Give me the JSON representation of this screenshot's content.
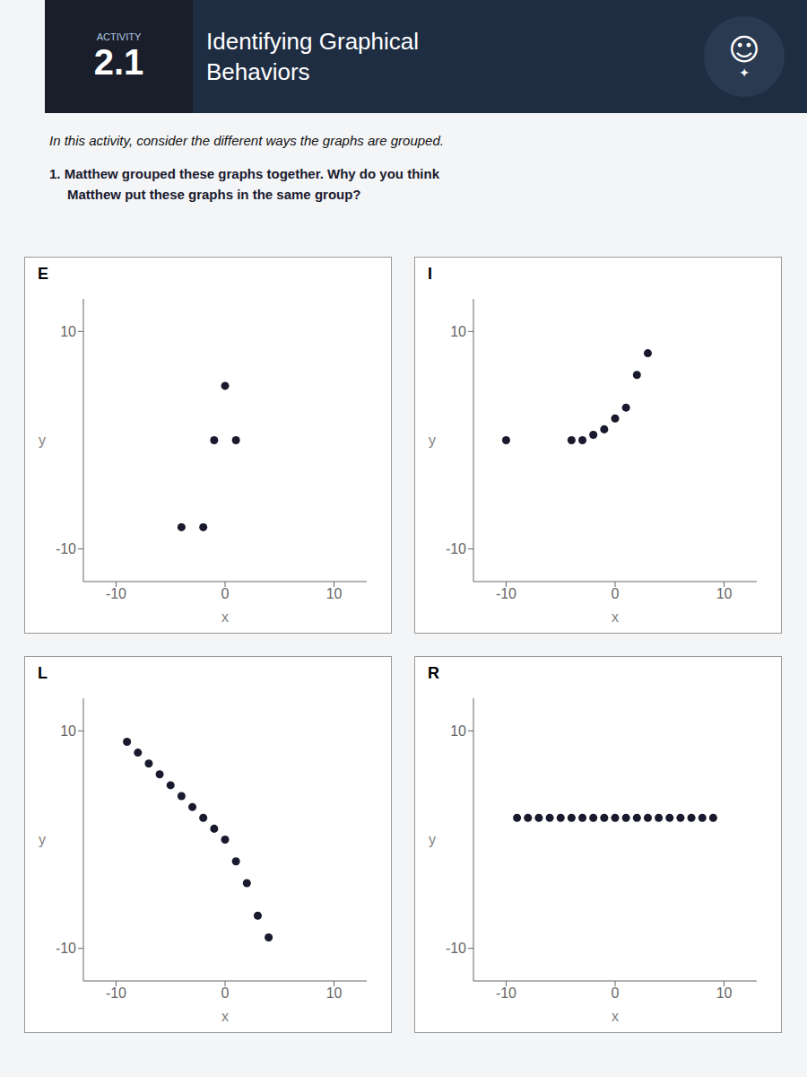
{
  "annotations": [
    "ACTIVITY",
    "2.1",
    "Identifying Graphical",
    "Behaviors",
    "☺",
    "✦",
    "In this activity, consider the different ways the graphs are grouped.",
    "1.  Matthew grouped these graphs together. Why do you think",
    "Matthew put these graphs in the same group?"
  ],
  "chart_data": [
    {
      "type": "scatter",
      "title": "E",
      "x_label": "x",
      "y_label": "y",
      "x": [
        0,
        -1,
        1,
        -4,
        -2
      ],
      "values": [
        5,
        0,
        0,
        -8,
        -8
      ],
      "color": "#1a1a2e",
      "xlim": [
        -13,
        13
      ],
      "ylim": [
        -13,
        13
      ],
      "xticks": [
        -10,
        0,
        10
      ],
      "yticks": [
        -10,
        10
      ],
      "grid": false
    },
    {
      "type": "scatter",
      "title": "I",
      "x_label": "x",
      "y_label": "y",
      "x": [
        -10,
        -4,
        -3,
        -2,
        -1,
        0,
        1,
        2,
        3
      ],
      "values": [
        0,
        0,
        0,
        0.5,
        1,
        2,
        3,
        6,
        8
      ],
      "color": "#1a1a2e",
      "xlim": [
        -13,
        13
      ],
      "ylim": [
        -13,
        13
      ],
      "xticks": [
        -10,
        0,
        10
      ],
      "yticks": [
        -10,
        10
      ],
      "grid": false
    },
    {
      "type": "scatter",
      "title": "L",
      "x_label": "x",
      "y_label": "y",
      "x": [
        -9,
        -8,
        -7,
        -6,
        -5,
        -4,
        -3,
        -2,
        -1,
        0,
        1,
        2,
        3,
        4
      ],
      "values": [
        9,
        8,
        7,
        6,
        5,
        4,
        3,
        2,
        1,
        0,
        -2,
        -4,
        -7,
        -9
      ],
      "color": "#1a1a2e",
      "xlim": [
        -13,
        13
      ],
      "ylim": [
        -13,
        13
      ],
      "xticks": [
        -10,
        0,
        10
      ],
      "yticks": [
        -10,
        10
      ],
      "grid": false
    },
    {
      "type": "scatter",
      "title": "R",
      "x_label": "x",
      "y_label": "y",
      "x": [
        -9,
        -8,
        -7,
        -6,
        -5,
        -4,
        -3,
        -2,
        -1,
        0,
        1,
        2,
        3,
        4,
        5,
        6,
        7,
        8,
        9
      ],
      "values": [
        2,
        2,
        2,
        2,
        2,
        2,
        2,
        2,
        2,
        2,
        2,
        2,
        2,
        2,
        2,
        2,
        2,
        2,
        2
      ],
      "color": "#1a1a2e",
      "xlim": [
        -13,
        13
      ],
      "ylim": [
        -13,
        13
      ],
      "xticks": [
        -10,
        0,
        10
      ],
      "yticks": [
        -10,
        10
      ],
      "grid": false
    }
  ]
}
